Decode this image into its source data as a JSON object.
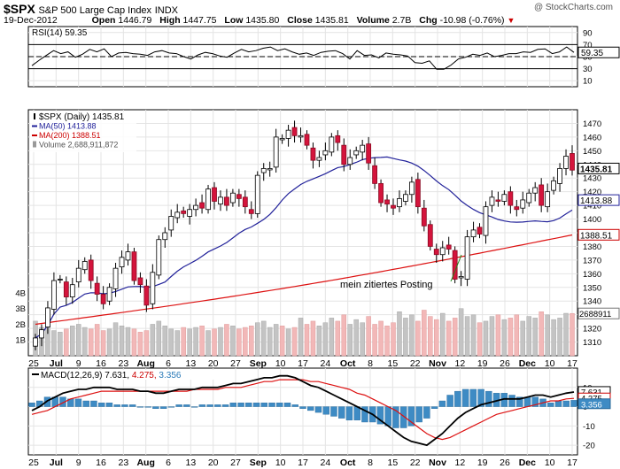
{
  "header": {
    "symbol": "$SPX",
    "name": "S&P 500 Large Cap Index",
    "exchange": "INDX",
    "date": "19-Dec-2012",
    "open_label": "Open",
    "open": "1446.79",
    "high_label": "High",
    "high": "1447.75",
    "low_label": "Low",
    "low": "1435.80",
    "close_label": "Close",
    "close": "1435.81",
    "volume_label": "Volume",
    "volume": "2.7B",
    "chg_label": "Chg",
    "chg": "-10.98 (-0.76%)",
    "chg_arrow": "▼",
    "watermark": "@ StockCharts.com",
    "up_color": "#1a8a1a",
    "down_color": "#cc0000"
  },
  "chart_data": [
    {
      "type": "line",
      "title": "RSI(14) 59.35",
      "ylim": [
        0,
        100
      ],
      "ticks": [
        "90",
        "70",
        "50",
        "30",
        "10"
      ],
      "tick_values": [
        90,
        70,
        50,
        30,
        10
      ],
      "last_label": "59.35",
      "series": [
        {
          "name": "RSI(14)",
          "color": "#000000",
          "values": [
            35,
            44,
            52,
            60,
            55,
            58,
            49,
            54,
            62,
            58,
            63,
            50,
            56,
            57,
            55,
            54,
            52,
            58,
            60,
            56,
            55,
            50,
            46,
            53,
            57,
            55,
            51,
            49,
            56,
            62,
            58,
            60,
            64,
            66,
            60,
            63,
            58,
            54,
            56,
            52,
            57,
            59,
            60,
            55,
            46,
            60,
            52,
            53,
            48,
            56,
            54,
            53,
            51,
            40,
            39,
            43,
            29,
            29,
            36,
            46,
            49,
            54,
            52,
            56,
            50,
            52,
            55,
            55,
            58,
            57,
            62,
            63,
            55,
            58,
            66,
            57
          ]
        }
      ]
    },
    {
      "type": "candlestick",
      "title": "$SPX (Daily) 1435.81",
      "ylim": [
        1300,
        1480
      ],
      "ticks": [
        "1470",
        "1460",
        "1450",
        "1440",
        "1430",
        "1420",
        "1410",
        "1400",
        "1390",
        "1380",
        "1370",
        "1360",
        "1350",
        "1340",
        "1330",
        "1320",
        "1310"
      ],
      "tick_values": [
        1470,
        1460,
        1450,
        1440,
        1430,
        1420,
        1410,
        1400,
        1390,
        1380,
        1370,
        1360,
        1350,
        1340,
        1330,
        1320,
        1310
      ],
      "last_close_label": "1435.81",
      "ma50_label_value": "1413.88",
      "ma200_label_value": "1388.51",
      "volume_last_label": "2688911",
      "volume_axis": [
        "4B",
        "3B",
        "2B",
        "1B"
      ],
      "volume_axis_values": [
        4,
        3,
        2,
        1
      ],
      "legend": [
        {
          "text": "$SPX (Daily) 1435.81",
          "color": "#000000"
        },
        {
          "text": "MA(50) 1413.88",
          "color": "#1f1f99"
        },
        {
          "text": "MA(200) 1388.51",
          "color": "#cc0000"
        },
        {
          "text": "Volume 2,688,911,872",
          "color": "#555555"
        }
      ],
      "annotation": "mein zitiertes Posting",
      "closes": [
        1313,
        1319,
        1335,
        1355,
        1356,
        1343,
        1352,
        1364,
        1369,
        1355,
        1345,
        1338,
        1350,
        1364,
        1372,
        1376,
        1355,
        1352,
        1337,
        1361,
        1385,
        1390,
        1402,
        1405,
        1404,
        1407,
        1410,
        1408,
        1422,
        1413,
        1416,
        1410,
        1419,
        1415,
        1409,
        1404,
        1432,
        1437,
        1437,
        1460,
        1459,
        1465,
        1461,
        1461,
        1454,
        1443,
        1445,
        1450,
        1460,
        1456,
        1440,
        1445,
        1450,
        1454,
        1441,
        1426,
        1412,
        1411,
        1408,
        1415,
        1418,
        1427,
        1409,
        1395,
        1380,
        1374,
        1379,
        1378,
        1356,
        1358,
        1387,
        1392,
        1389,
        1409,
        1416,
        1413,
        1418,
        1410,
        1407,
        1414,
        1419,
        1423,
        1410,
        1420,
        1428,
        1437,
        1446,
        1435.81
      ],
      "volume_b": [
        2.2,
        1.8,
        1.9,
        1.6,
        1.5,
        1.7,
        1.9,
        2.0,
        1.8,
        1.7,
        2.0,
        1.6,
        1.7,
        2.1,
        1.9,
        1.8,
        1.7,
        1.5,
        1.6,
        2.0,
        2.2,
        1.9,
        1.7,
        1.6,
        1.8,
        1.7,
        1.8,
        1.9,
        1.6,
        1.7,
        1.8,
        2.0,
        1.9,
        1.7,
        1.8,
        1.9,
        2.1,
        2.2,
        1.8,
        2.0,
        1.9,
        1.7,
        1.8,
        2.4,
        2.0,
        2.2,
        1.9,
        2.1,
        2.4,
        2.2,
        2.6,
        2.0,
        2.3,
        2.1,
        2.5,
        2.0,
        2.2,
        1.9,
        2.1,
        2.8,
        2.4,
        2.6,
        2.2,
        2.9,
        2.5,
        2.3,
        2.7,
        2.2,
        2.4,
        3.0,
        2.5,
        2.6,
        2.1,
        2.2,
        2.5,
        2.6,
        2.3,
        2.4,
        2.6,
        2.2,
        2.5,
        2.4,
        2.8,
        2.6,
        2.3,
        2.4,
        2.7,
        2.69
      ]
    },
    {
      "type": "line+histogram",
      "title": "MACD(12,26,9) 7.631, 4.275, 3.356",
      "title_parts": [
        {
          "text": "MACD(12,26,9) 7.631, ",
          "color": "#000000"
        },
        {
          "text": "4.275, ",
          "color": "#cc0000"
        },
        {
          "text": "3.356",
          "color": "#2a7ab8"
        }
      ],
      "ylim": [
        -25,
        20
      ],
      "ticks": [
        "10",
        "0",
        "-10",
        "-20"
      ],
      "tick_values": [
        10,
        0,
        -10,
        -20
      ],
      "last_labels": [
        "7.631",
        "4.275",
        "3.356"
      ],
      "macd": [
        -2,
        0,
        3,
        5,
        7,
        8,
        9,
        9,
        10,
        10,
        10,
        9,
        9,
        9,
        8,
        8,
        7,
        7,
        8,
        9,
        9,
        9,
        10,
        10,
        10,
        11,
        12,
        12,
        13,
        14,
        15,
        15,
        16,
        16,
        15,
        13,
        11,
        10,
        8,
        6,
        4,
        2,
        0,
        -2,
        -4,
        -7,
        -10,
        -13,
        -16,
        -18,
        -19,
        -20,
        -17,
        -14,
        -10,
        -6,
        -3,
        -1,
        1,
        2,
        3,
        4,
        4,
        4,
        5,
        6,
        6,
        5,
        6,
        7,
        7.6
      ],
      "signal": [
        -4,
        -3,
        -2,
        0,
        2,
        4,
        5,
        6,
        7,
        8,
        8,
        8,
        8,
        8,
        8,
        8,
        8,
        8,
        8,
        8,
        8,
        9,
        9,
        9,
        9,
        10,
        10,
        10,
        11,
        12,
        13,
        13,
        14,
        14,
        14,
        14,
        13,
        13,
        12,
        11,
        10,
        9,
        7,
        6,
        4,
        2,
        0,
        -2,
        -5,
        -8,
        -11,
        -14,
        -16,
        -17,
        -16,
        -14,
        -12,
        -10,
        -8,
        -6,
        -4,
        -3,
        -2,
        -1,
        0,
        1,
        2,
        3,
        3,
        4,
        4.3
      ]
    }
  ],
  "x_axis": {
    "labels": [
      "25",
      "Jul",
      "9",
      "16",
      "23",
      "Aug",
      "6",
      "13",
      "20",
      "27",
      "Sep",
      "10",
      "17",
      "24",
      "Oct",
      "8",
      "15",
      "22",
      "Nov",
      "12",
      "19",
      "26",
      "Dec",
      "10",
      "17"
    ],
    "bold": [
      "Jul",
      "Aug",
      "Sep",
      "Oct",
      "Nov",
      "Dec"
    ]
  }
}
